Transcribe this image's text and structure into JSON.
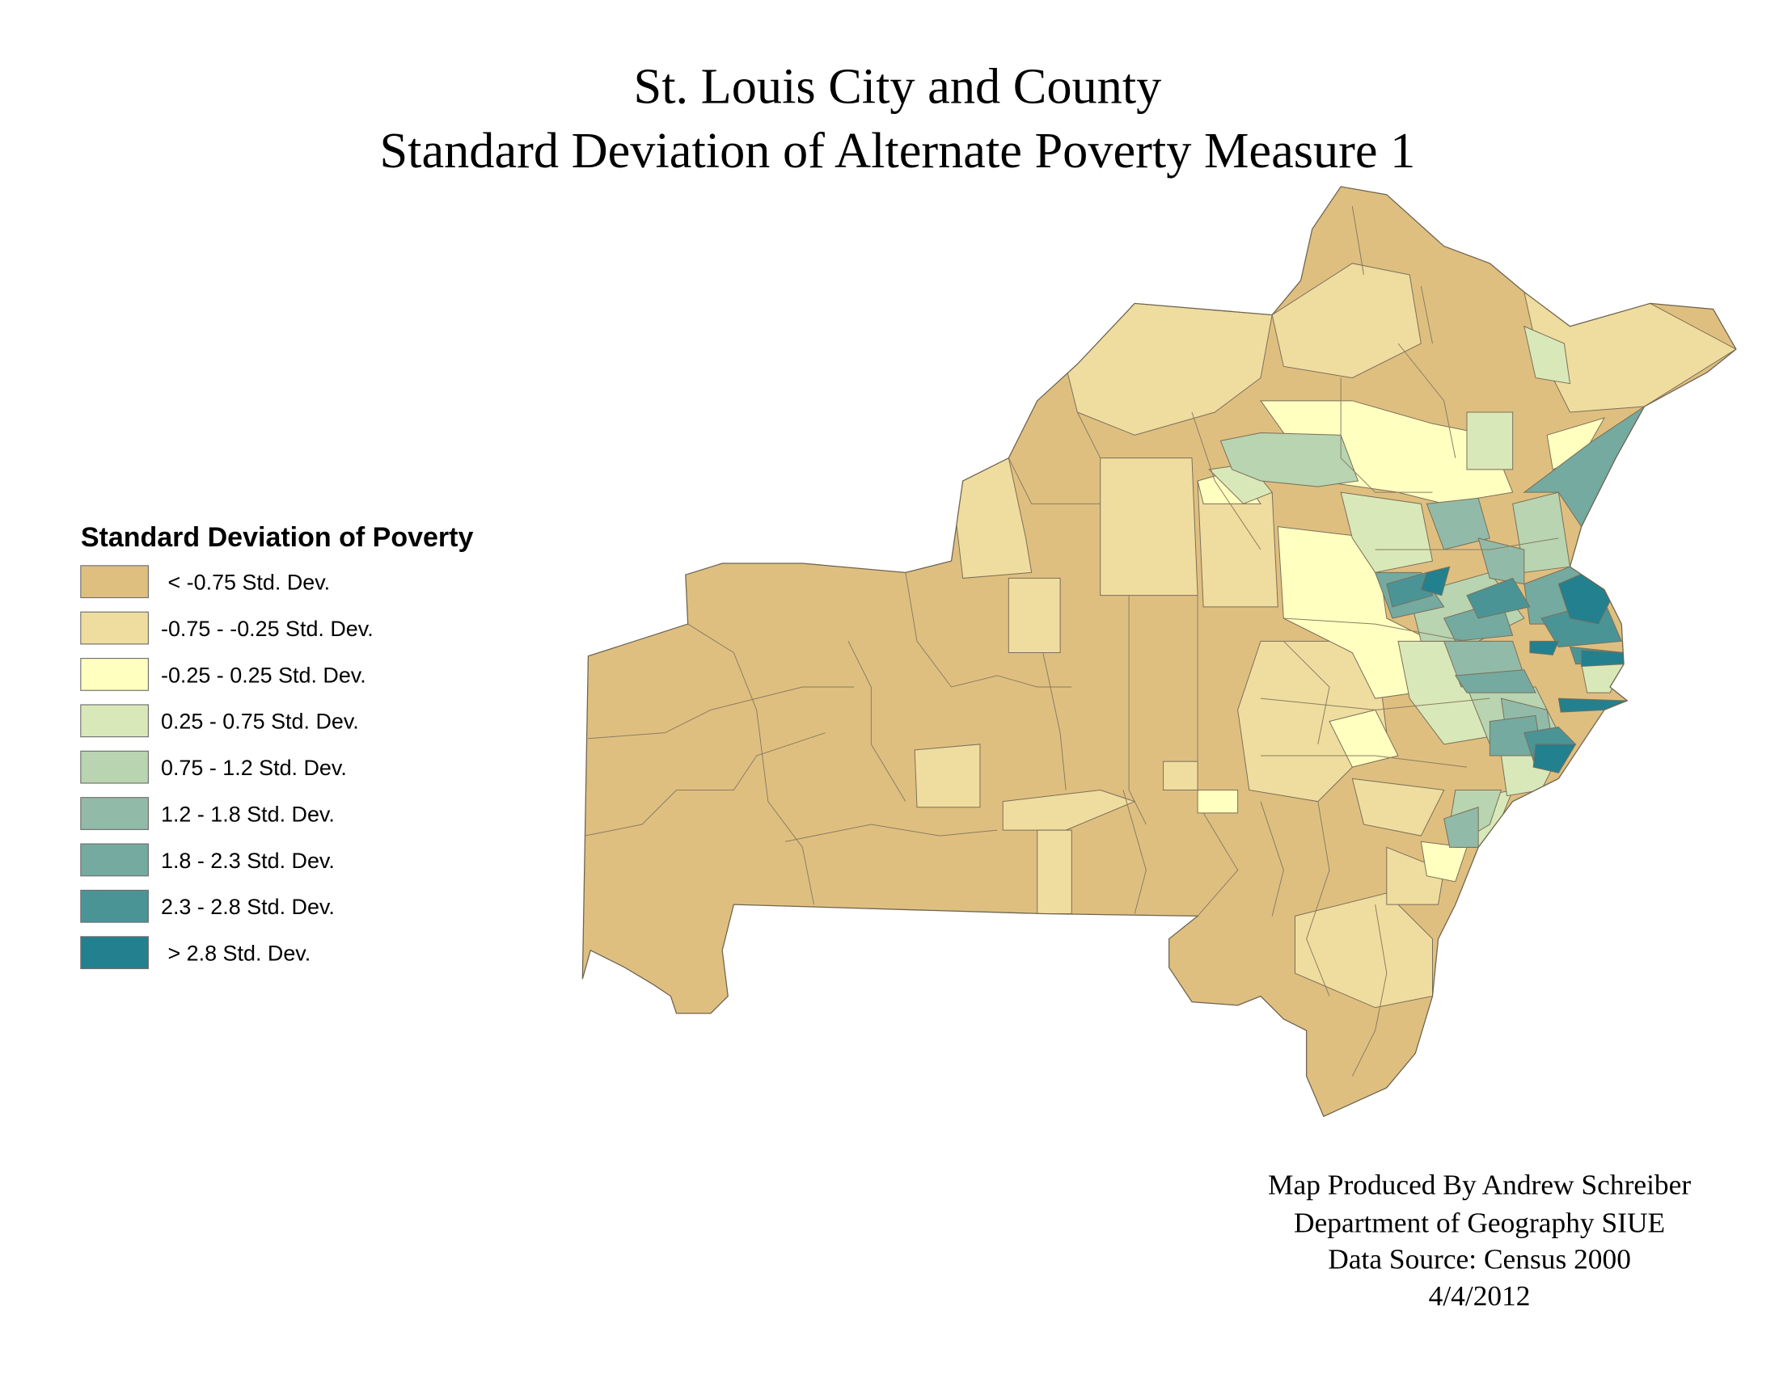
{
  "title": {
    "line1": "St. Louis City and County",
    "line2": "Standard Deviation of Alternate Poverty Measure 1"
  },
  "legend": {
    "title": "Standard Deviation of Poverty",
    "classes": [
      {
        "label": "< -0.75 Std. Dev.",
        "color": "#DFBF80"
      },
      {
        "label": "-0.75 - -0.25 Std. Dev.",
        "color": "#EFDD9F"
      },
      {
        "label": "-0.25 - 0.25 Std. Dev.",
        "color": "#FFFFC0"
      },
      {
        "label": "0.25 - 0.75 Std. Dev.",
        "color": "#D9E8B8"
      },
      {
        "label": "0.75 - 1.2 Std. Dev.",
        "color": "#B8D4B0"
      },
      {
        "label": "1.2 - 1.8 Std. Dev.",
        "color": "#92BAA8"
      },
      {
        "label": "1.8 - 2.3 Std. Dev.",
        "color": "#74AAA0"
      },
      {
        "label": "2.3 - 2.8 Std. Dev.",
        "color": "#4B9496"
      },
      {
        "label": "> 2.8 Std. Dev.",
        "color": "#23808E"
      }
    ]
  },
  "credits": {
    "line1": "Map Produced By Andrew Schreiber",
    "line2": "Department of Geography SIUE",
    "line3": "Data Source: Census 2000",
    "line4": "4/4/2012"
  }
}
